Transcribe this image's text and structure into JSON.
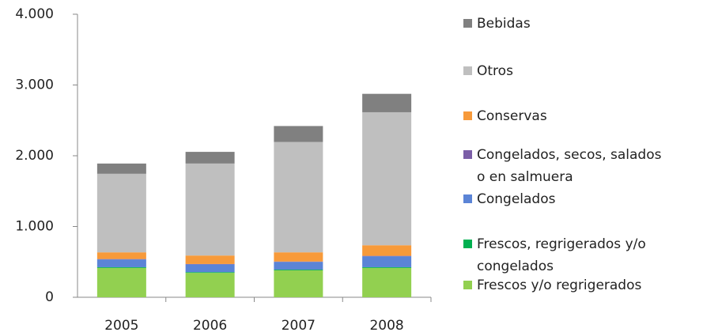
{
  "chart_data": {
    "type": "bar",
    "stacked": true,
    "categories": [
      "2005",
      "2006",
      "2007",
      "2008"
    ],
    "series": [
      {
        "name": "Frescos y/o regrigerados",
        "color": "#92d050",
        "values": [
          415,
          345,
          380,
          415
        ]
      },
      {
        "name": "Frescos, regrigerados y/o congelados",
        "color": "#00b050",
        "values": [
          10,
          10,
          10,
          10
        ]
      },
      {
        "name": "Congelados",
        "color": "#5b84d6",
        "values": [
          110,
          110,
          110,
          155
        ]
      },
      {
        "name": "Congelados, secos, salados o en salmuera",
        "color": "#7b5ea7",
        "values": [
          5,
          5,
          5,
          5
        ]
      },
      {
        "name": "Conservas",
        "color": "#f79a3a",
        "values": [
          95,
          120,
          130,
          150
        ]
      },
      {
        "name": "Otros",
        "color": "#bfbfbf",
        "values": [
          1110,
          1300,
          1560,
          1880
        ]
      },
      {
        "name": "Bebidas",
        "color": "#808080",
        "values": [
          145,
          165,
          225,
          260
        ]
      }
    ],
    "ylim": [
      0,
      4000
    ],
    "yticks": [
      0,
      {
        "value": 1000,
        "label": "1.000"
      },
      {
        "value": 2000,
        "label": "2.000"
      },
      {
        "value": 3000,
        "label": "3.000"
      },
      {
        "value": 4000,
        "label": "4.000"
      }
    ]
  }
}
